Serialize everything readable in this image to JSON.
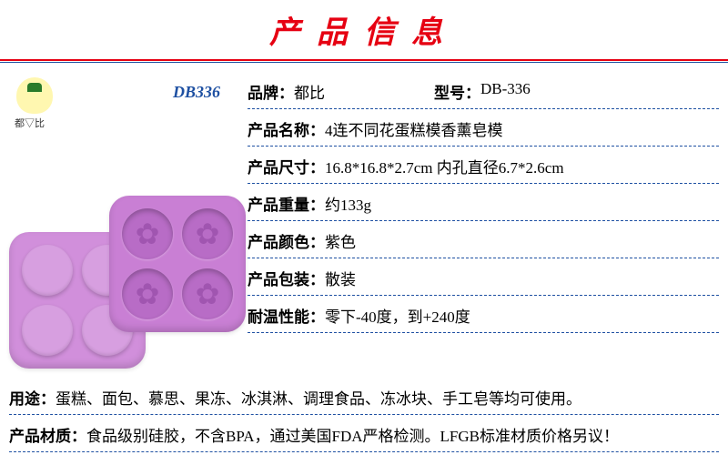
{
  "title": "产品信息",
  "code": "DB336",
  "specs": {
    "brand_label": "品牌：",
    "brand_value": "都比",
    "model_label": "型号：",
    "model_value": "DB-336",
    "name_label": "产品名称：",
    "name_value": "4连不同花蛋糕模香薰皂模",
    "size_label": "产品尺寸：",
    "size_value": "16.8*16.8*2.7cm 内孔直径6.7*2.6cm",
    "weight_label": "产品重量：",
    "weight_value": "约133g",
    "color_label": "产品颜色：",
    "color_value": "紫色",
    "package_label": "产品包装：",
    "package_value": "散装",
    "temp_label": "耐温性能：",
    "temp_value": "零下-40度，到+240度"
  },
  "bottom": {
    "usage_label": "用途：",
    "usage_value": "蛋糕、面包、慕思、果冻、冰淇淋、调理食品、冻冰块、手工皂等均可使用。",
    "material_label": "产品材质：",
    "material_value": "食品级别硅胶，不含BPA，通过美国FDA严格检测。LFGB标准材质价格另议！"
  },
  "colors": {
    "title": "#e60012",
    "rule_red": "#e60012",
    "rule_blue": "#1e50a2",
    "mold": "#c97fd4"
  }
}
